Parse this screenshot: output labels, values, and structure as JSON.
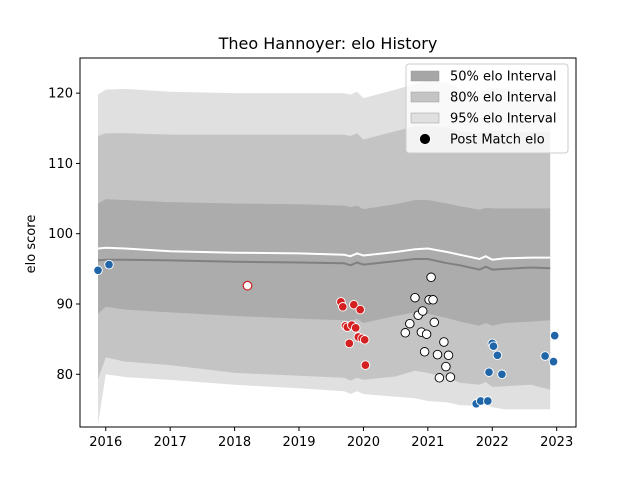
{
  "chart_data": {
    "type": "scatter",
    "title": "Theo Hannoyer: elo History",
    "xlabel": "",
    "ylabel": "elo score",
    "xlim": [
      2015.6,
      2023.3
    ],
    "ylim": [
      72.5,
      125
    ],
    "xticks": [
      2016,
      2017,
      2018,
      2019,
      2020,
      2021,
      2022,
      2023
    ],
    "xtick_labels": [
      "2016",
      "2017",
      "2018",
      "2019",
      "2020",
      "2021",
      "2022",
      "2023"
    ],
    "yticks": [
      80,
      90,
      100,
      110,
      120
    ],
    "ytick_labels": [
      "80",
      "90",
      "100",
      "110",
      "120"
    ],
    "grid": false,
    "legend_position": "top-right",
    "legend": [
      {
        "label": "50% elo Interval",
        "kind": "band",
        "color": "#a6a6a6"
      },
      {
        "label": "80% elo Interval",
        "kind": "band",
        "color": "#c4c4c4"
      },
      {
        "label": "95% elo Interval",
        "kind": "band",
        "color": "#e0e0e0"
      },
      {
        "label": "Post Match elo",
        "kind": "marker",
        "color": "#000000"
      }
    ],
    "bands": {
      "x": [
        2015.88,
        2016.0,
        2016.3,
        2017.0,
        2018.0,
        2019.0,
        2019.7,
        2019.8,
        2019.9,
        2020.0,
        2020.5,
        2020.8,
        2021.0,
        2021.3,
        2021.5,
        2021.8,
        2021.9,
        2022.0,
        2022.2,
        2022.6,
        2022.9
      ],
      "upper95": [
        119.8,
        120.5,
        120.6,
        120.2,
        120.0,
        120.0,
        120.0,
        119.8,
        120.2,
        119.3,
        120.5,
        121.3,
        121.8,
        121.5,
        120.5,
        120.3,
        120.6,
        120.8,
        120.6,
        120.6,
        120.6
      ],
      "upper80": [
        113.9,
        114.3,
        114.3,
        114.1,
        114.1,
        114.1,
        114.1,
        113.9,
        114.3,
        113.4,
        114.6,
        115.3,
        115.4,
        115.1,
        114.6,
        114.3,
        114.5,
        114.7,
        114.5,
        114.5,
        114.5
      ],
      "upper50": [
        104.3,
        104.9,
        104.8,
        104.5,
        104.3,
        104.2,
        104.0,
        103.8,
        104.0,
        103.5,
        104.2,
        104.8,
        104.8,
        104.3,
        103.9,
        103.4,
        103.7,
        103.6,
        103.6,
        103.6,
        103.6
      ],
      "mean": [
        96.2,
        96.3,
        96.3,
        96.2,
        96.0,
        95.9,
        95.8,
        95.5,
        95.9,
        95.6,
        96.1,
        96.4,
        96.4,
        95.8,
        95.5,
        94.9,
        95.3,
        94.9,
        95.0,
        95.2,
        95.1
      ],
      "lower50": [
        88.6,
        89.6,
        89.2,
        88.8,
        88.3,
        87.9,
        87.7,
        87.5,
        87.9,
        87.3,
        88.3,
        88.8,
        88.6,
        88.0,
        87.5,
        86.9,
        87.3,
        86.9,
        87.3,
        87.5,
        87.7
      ],
      "lower80": [
        79.3,
        82.4,
        81.8,
        81.3,
        80.2,
        79.8,
        79.5,
        79.1,
        79.5,
        79.2,
        79.7,
        80.5,
        80.2,
        79.5,
        78.8,
        78.5,
        78.9,
        78.2,
        78.3,
        78.5,
        77.8
      ],
      "lower95": [
        72.9,
        80.0,
        79.6,
        79.2,
        78.5,
        78.0,
        77.6,
        77.2,
        77.6,
        77.2,
        76.8,
        76.6,
        76.2,
        76.0,
        75.6,
        75.5,
        75.7,
        75.3,
        75.0,
        75.0,
        75.0
      ]
    },
    "upper_line": {
      "x": [
        2015.88,
        2016.0,
        2016.3,
        2017.0,
        2018.0,
        2019.0,
        2019.7,
        2019.8,
        2019.9,
        2020.0,
        2020.5,
        2020.8,
        2021.0,
        2021.3,
        2021.5,
        2021.8,
        2021.9,
        2022.0,
        2022.2,
        2022.6,
        2022.9
      ],
      "y": [
        97.9,
        98.0,
        97.9,
        97.5,
        97.3,
        97.2,
        97.0,
        96.8,
        97.2,
        96.9,
        97.4,
        97.8,
        97.9,
        97.4,
        97.0,
        96.4,
        96.8,
        96.3,
        96.5,
        96.6,
        96.6
      ]
    },
    "series": [
      {
        "color": "#1f65a8",
        "x": [
          2015.88,
          2016.05,
          2021.75,
          2021.82,
          2021.93,
          2021.95,
          2022.0,
          2022.02,
          2022.08,
          2022.15,
          2022.82,
          2022.95,
          2022.97
        ],
        "y": [
          94.8,
          95.6,
          75.8,
          76.2,
          76.2,
          80.3,
          84.4,
          84.0,
          82.7,
          80.0,
          82.6,
          81.8,
          85.5
        ]
      },
      {
        "color": "#ffffff",
        "edge": "#c82020",
        "x": [
          2018.2
        ],
        "y": [
          92.6
        ]
      },
      {
        "color": "#d42020",
        "x": [
          2019.65,
          2019.68,
          2019.72,
          2019.75,
          2019.78,
          2019.82,
          2019.85,
          2019.88,
          2019.92,
          2019.95,
          2019.98,
          2020.02,
          2020.03
        ],
        "y": [
          90.3,
          89.6,
          86.9,
          86.7,
          84.4,
          87.0,
          89.9,
          86.6,
          85.3,
          89.2,
          85.1,
          84.9,
          81.3
        ]
      },
      {
        "color": "#ffffff",
        "x": [
          2020.65,
          2020.72,
          2020.8,
          2020.85,
          2020.9,
          2020.92,
          2020.95,
          2020.98,
          2021.02,
          2021.05,
          2021.08,
          2021.1,
          2021.15,
          2021.18,
          2021.25,
          2021.28,
          2021.32,
          2021.35
        ],
        "y": [
          85.9,
          87.2,
          90.9,
          88.4,
          86.0,
          89.0,
          83.2,
          85.7,
          90.6,
          93.8,
          90.6,
          87.4,
          82.8,
          79.5,
          84.6,
          81.1,
          82.7,
          79.6
        ]
      }
    ]
  }
}
